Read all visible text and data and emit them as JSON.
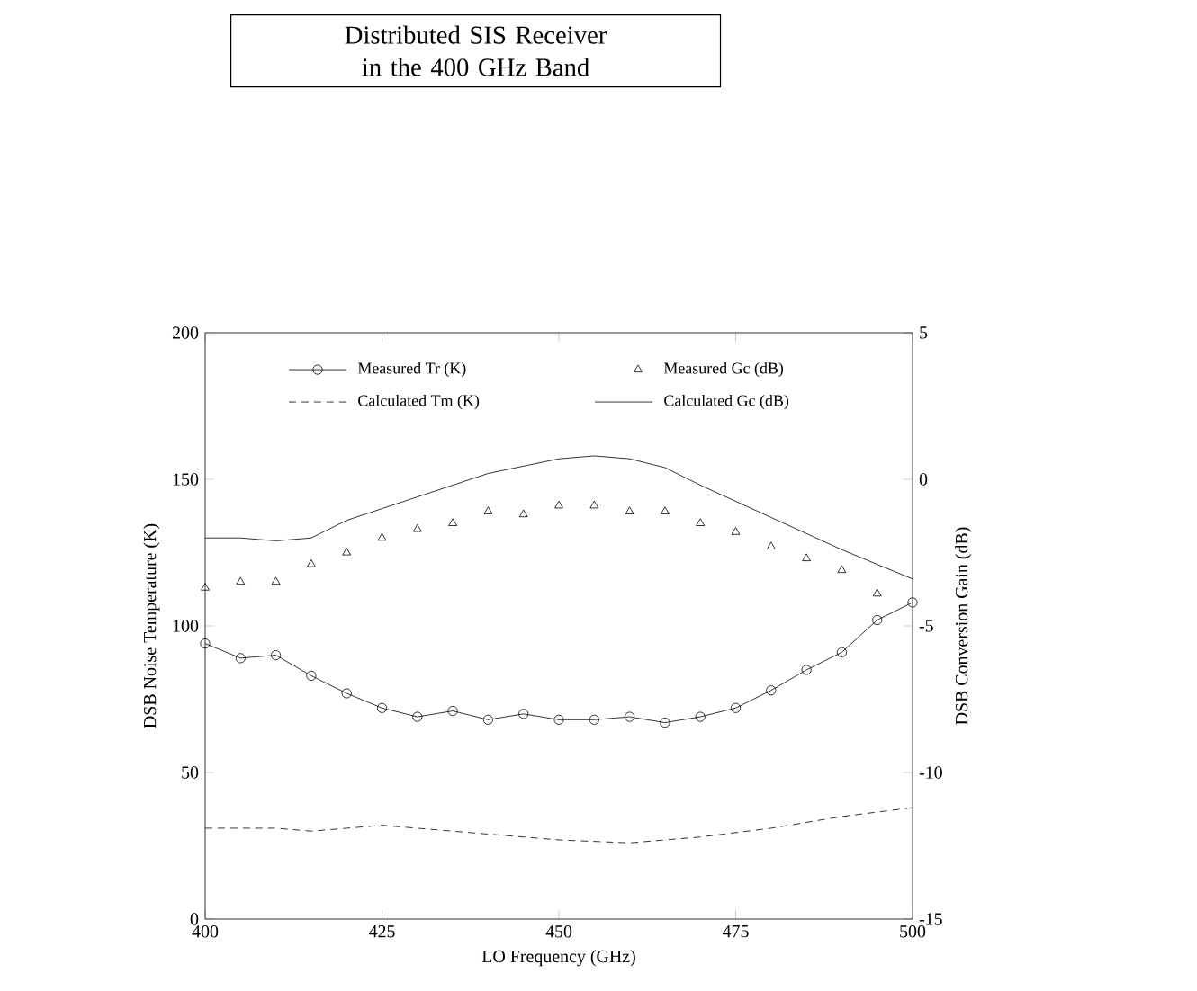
{
  "chart_data": {
    "type": "line",
    "title": "Distributed SIS Receiver in the 400 GHz Band",
    "xlabel": "LO Frequency (GHz)",
    "ylabel": "DSB Noise Temperature (K)",
    "y2label": "DSB Conversion Gain (dB)",
    "x": [
      400,
      405,
      410,
      415,
      420,
      425,
      430,
      435,
      440,
      445,
      450,
      455,
      460,
      465,
      470,
      475,
      480,
      485,
      490,
      495,
      500
    ],
    "xlim": [
      400,
      500
    ],
    "xticks": [
      400,
      425,
      450,
      475,
      500
    ],
    "ylim": [
      0,
      200
    ],
    "yticks": [
      0,
      50,
      100,
      150,
      200
    ],
    "y2lim": [
      -15,
      5
    ],
    "y2ticks": [
      -15,
      -10,
      -5,
      0,
      5
    ],
    "legend": "top",
    "grid": false,
    "series": [
      {
        "name": "Measured Tr (K)",
        "type": "line",
        "marker": "circle",
        "line_style": "solid",
        "color": "#000000",
        "values": [
          94,
          89,
          90,
          83,
          77,
          72,
          69,
          71,
          68,
          70,
          68,
          68,
          69,
          67,
          69,
          72,
          78,
          85,
          91,
          102,
          108
        ]
      },
      {
        "name": "Measured Gc (dB)",
        "type": "scatter",
        "marker": "triangle",
        "axis": "y2",
        "color": "#000000",
        "values": [
          -3.7,
          -3.5,
          -3.5,
          -2.9,
          -2.5,
          -2.0,
          -1.7,
          -1.5,
          -1.1,
          -1.2,
          -0.9,
          -0.9,
          -1.1,
          -1.1,
          -1.5,
          -1.8,
          -2.3,
          -2.7,
          -3.1,
          -3.9,
          null
        ]
      },
      {
        "name": "Calculated Tm (K)",
        "type": "line",
        "marker": "none",
        "line_style": "dashed",
        "color": "#000000",
        "x": [
          400,
          410,
          415,
          425,
          435,
          450,
          460,
          470,
          480,
          490,
          500
        ],
        "values": [
          31,
          31,
          30,
          32,
          30,
          27,
          26,
          28,
          31,
          35,
          38
        ]
      },
      {
        "name": "Calculated Gc (dB)",
        "type": "line",
        "marker": "none",
        "line_style": "solid",
        "axis": "y2",
        "color": "#000000",
        "x": [
          400,
          405,
          410,
          415,
          420,
          425,
          430,
          440,
          450,
          455,
          460,
          465,
          470,
          480,
          490,
          500
        ],
        "values": [
          -2.0,
          -2.0,
          -2.1,
          -2.0,
          -1.4,
          -1.0,
          -0.6,
          0.2,
          0.7,
          0.8,
          0.7,
          0.4,
          -0.2,
          -1.3,
          -2.4,
          -3.4
        ]
      }
    ]
  }
}
